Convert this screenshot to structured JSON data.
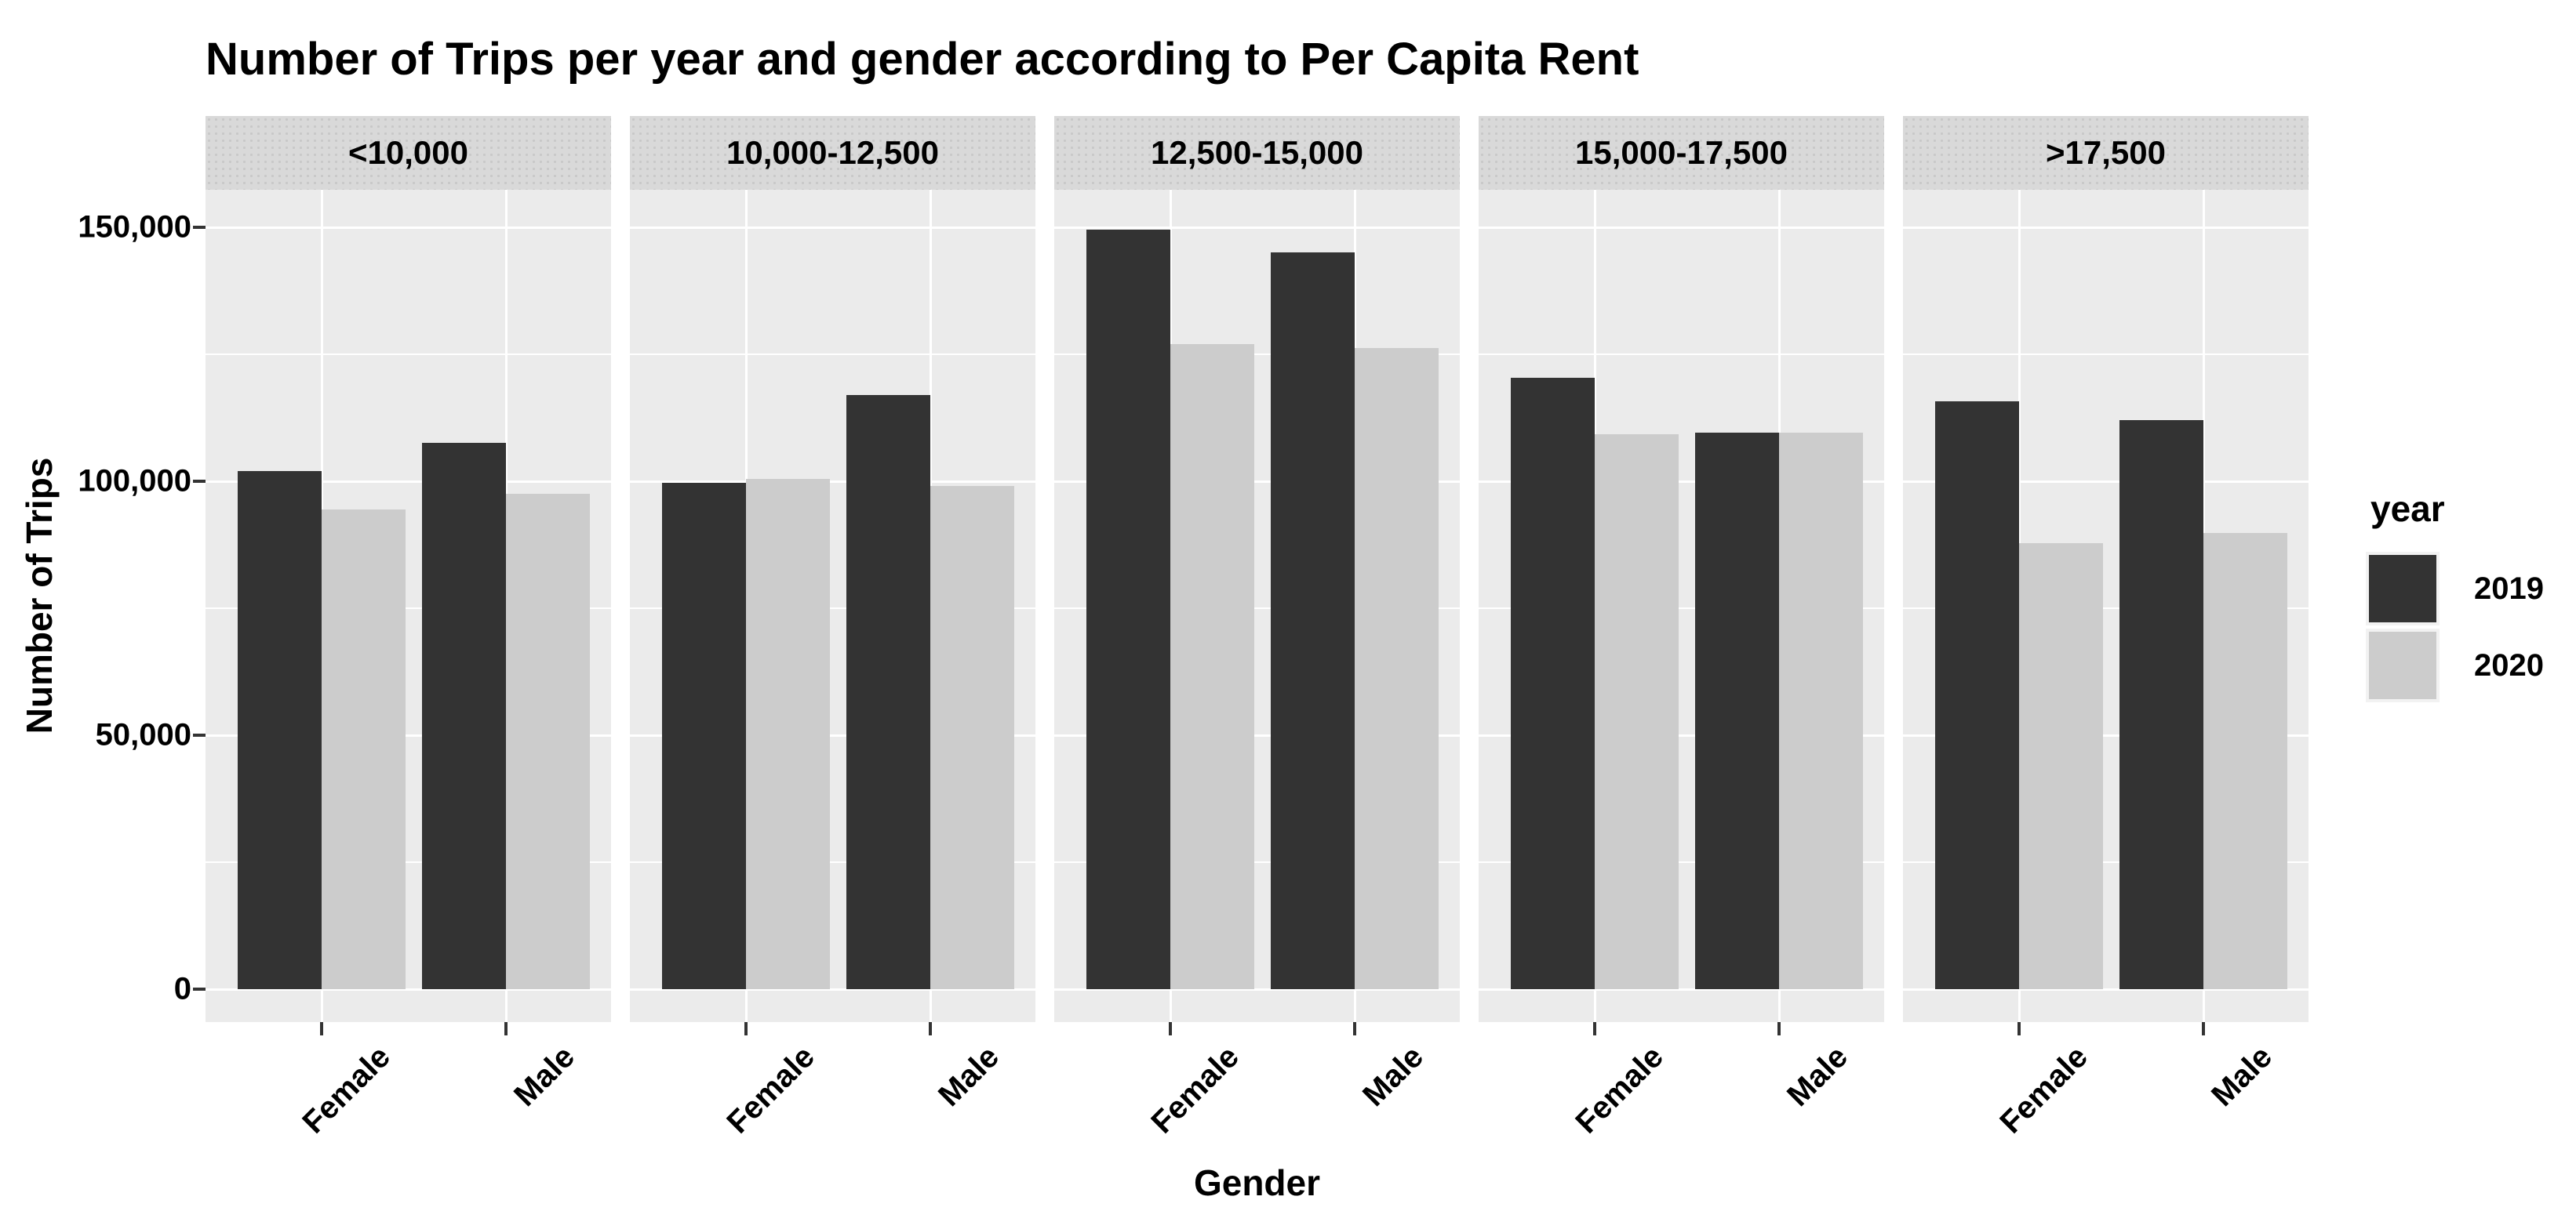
{
  "chart_data": {
    "type": "bar",
    "title": "Number of Trips per year and gender according to Per Capita Rent",
    "xlabel": "Gender",
    "ylabel": "Number of Trips",
    "facet_variable": "Per Capita Rent",
    "facets": [
      "<10,000",
      "10,000-12,500",
      "12,500-15,000",
      "15,000-17,500",
      ">17,500"
    ],
    "categories": [
      "Female",
      "Male"
    ],
    "series": [
      {
        "name": "2019",
        "color": "#333333",
        "values": [
          {
            "Female": 102000,
            "Male": 107500
          },
          {
            "Female": 99700,
            "Male": 117000
          },
          {
            "Female": 149500,
            "Male": 145000
          },
          {
            "Female": 120300,
            "Male": 109600
          },
          {
            "Female": 115700,
            "Male": 112000
          }
        ]
      },
      {
        "name": "2020",
        "color": "#cccccc",
        "values": [
          {
            "Female": 94500,
            "Male": 97500
          },
          {
            "Female": 100400,
            "Male": 99000
          },
          {
            "Female": 127000,
            "Male": 126300
          },
          {
            "Female": 109200,
            "Male": 109500
          },
          {
            "Female": 87800,
            "Male": 89800
          }
        ]
      }
    ],
    "y_axis": {
      "ticks": [
        0,
        50000,
        100000,
        150000
      ],
      "tick_labels": [
        "0",
        "50,000",
        "100,000",
        "150,000"
      ],
      "minor_ticks": [
        25000,
        75000,
        125000
      ],
      "ylim": [
        0,
        157500
      ]
    },
    "legend": {
      "title": "year",
      "position": "right",
      "entries": [
        "2019",
        "2020"
      ]
    },
    "grid": "on",
    "colors": {
      "panel_background": "#ebebeb",
      "strip_background": "#d9d9d9",
      "gridline": "#ffffff",
      "bar_2019": "#333333",
      "bar_2020": "#cccccc",
      "legend_key_background": "#f2f2f2",
      "text": "#000000"
    }
  }
}
